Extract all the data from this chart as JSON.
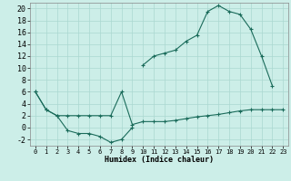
{
  "title": "",
  "xlabel": "Humidex (Indice chaleur)",
  "ylabel": "",
  "bg_color": "#cceee8",
  "grid_color": "#aad8d0",
  "line_color": "#1a6b5a",
  "x_values": [
    0,
    1,
    2,
    3,
    4,
    5,
    6,
    7,
    8,
    9,
    10,
    11,
    12,
    13,
    14,
    15,
    16,
    17,
    18,
    19,
    20,
    21,
    22,
    23
  ],
  "line1_x": [
    0,
    1,
    2,
    3,
    4,
    5,
    6,
    7,
    8,
    9
  ],
  "line1_y": [
    6.0,
    3.0,
    2.0,
    -0.5,
    -1.0,
    -1.0,
    -1.5,
    -2.5,
    -2.0,
    0.0
  ],
  "line2_x": [
    0,
    1,
    2,
    3,
    4,
    5,
    6,
    7,
    8,
    9,
    10,
    11,
    12,
    13,
    14,
    15,
    16,
    17,
    18,
    19,
    20,
    21,
    22,
    23
  ],
  "line2_y": [
    6.0,
    3.0,
    2.0,
    2.0,
    2.0,
    2.0,
    2.0,
    2.0,
    6.0,
    0.5,
    1.0,
    1.0,
    1.0,
    1.2,
    1.5,
    1.8,
    2.0,
    2.2,
    2.5,
    2.8,
    3.0,
    3.0,
    3.0,
    3.0
  ],
  "line3_x": [
    10,
    11,
    12,
    13,
    14,
    15,
    16,
    17,
    18,
    19,
    20,
    21,
    22
  ],
  "line3_y": [
    10.5,
    12.0,
    12.5,
    13.0,
    14.5,
    15.5,
    19.5,
    20.5,
    19.5,
    19.0,
    16.5,
    12.0,
    7.0
  ],
  "ylim": [
    -3,
    21
  ],
  "xlim": [
    -0.5,
    23.5
  ],
  "yticks": [
    -2,
    0,
    2,
    4,
    6,
    8,
    10,
    12,
    14,
    16,
    18,
    20
  ],
  "xticks": [
    0,
    1,
    2,
    3,
    4,
    5,
    6,
    7,
    8,
    9,
    10,
    11,
    12,
    13,
    14,
    15,
    16,
    17,
    18,
    19,
    20,
    21,
    22,
    23
  ],
  "xlabel_fontsize": 6,
  "tick_fontsize": 5,
  "linewidth": 0.8,
  "markersize": 3
}
